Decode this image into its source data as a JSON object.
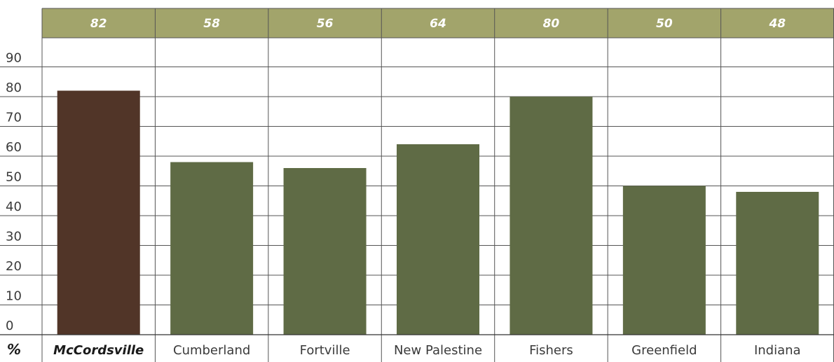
{
  "chart_data": {
    "type": "bar",
    "categories": [
      "McCordsville",
      "Cumberland",
      "Fortville",
      "New Palestine",
      "Fishers",
      "Greenfield",
      "Indiana"
    ],
    "values": [
      82,
      58,
      56,
      64,
      80,
      50,
      48
    ],
    "header_values": [
      "82",
      "58",
      "56",
      "64",
      "80",
      "50",
      "48"
    ],
    "highlight_category": "McCordsville",
    "y_unit_label": "%",
    "yticks": [
      0,
      10,
      20,
      30,
      40,
      50,
      60,
      70,
      80,
      90
    ],
    "ylim": [
      0,
      100
    ],
    "grid": true,
    "colors": {
      "highlight_bar": "#513528",
      "bar": "#5f6b45",
      "header_band": "#a2a46b",
      "grid": "#555555"
    }
  }
}
